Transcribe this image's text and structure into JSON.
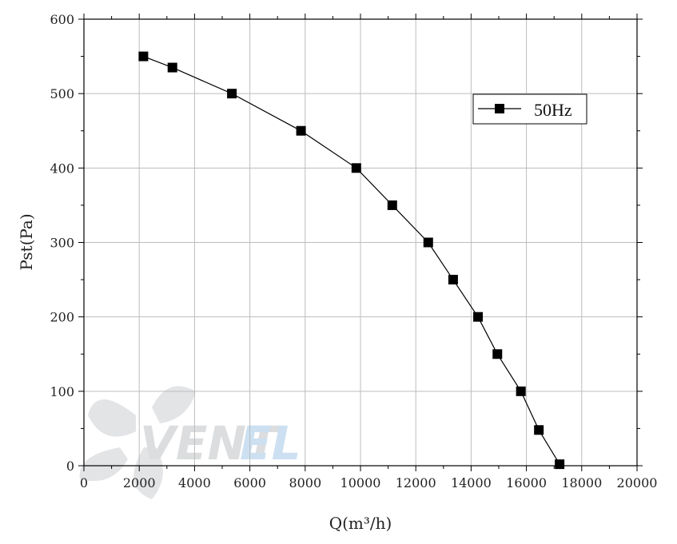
{
  "chart_data": {
    "type": "line",
    "xlabel": "Q(m³/h)",
    "ylabel": "Pst(Pa)",
    "xlim": [
      0,
      20000
    ],
    "ylim": [
      0,
      600
    ],
    "x_ticks": [
      0,
      2000,
      4000,
      6000,
      8000,
      10000,
      12000,
      14000,
      16000,
      18000,
      20000
    ],
    "y_ticks": [
      0,
      100,
      200,
      300,
      400,
      500,
      600
    ],
    "grid": true,
    "legend_position": "top-right",
    "series": [
      {
        "name": "50Hz",
        "marker": "square",
        "color": "#000000",
        "x": [
          2150,
          3200,
          5350,
          7850,
          9850,
          11150,
          12450,
          13350,
          14250,
          14950,
          15800,
          16450,
          17200
        ],
        "y": [
          550,
          535,
          500,
          450,
          400,
          350,
          300,
          250,
          200,
          150,
          100,
          48,
          2
        ]
      }
    ]
  },
  "watermark": {
    "brand": "VENTEL",
    "brand_colors": [
      "#9aa0a6",
      "#6fa8dc"
    ]
  }
}
